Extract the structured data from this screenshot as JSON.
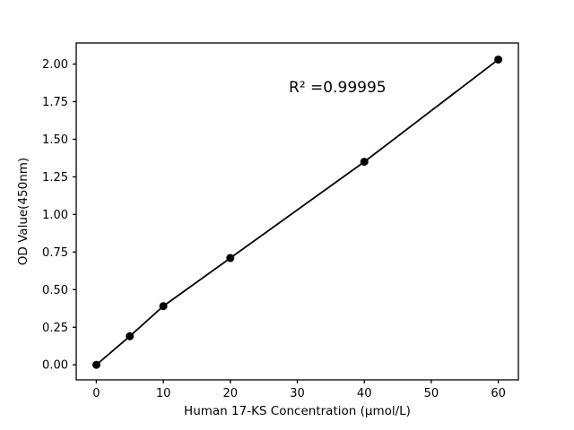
{
  "chart_data": {
    "type": "scatter",
    "connect_points": true,
    "x": [
      0,
      5,
      10,
      20,
      40,
      60
    ],
    "y": [
      0.0,
      0.19,
      0.39,
      0.71,
      1.35,
      2.03
    ],
    "title": "",
    "xlabel": "Human 17-KS Concentration (μmol/L)",
    "ylabel": "OD Value(450nm)",
    "xlim": [
      -3,
      63
    ],
    "ylim": [
      -0.1,
      2.14
    ],
    "xticks": [
      "0",
      "10",
      "20",
      "30",
      "40",
      "50",
      "60"
    ],
    "yticks": [
      "0.00",
      "0.25",
      "0.50",
      "0.75",
      "1.00",
      "1.25",
      "1.50",
      "1.75",
      "2.00"
    ],
    "annotation": {
      "text": "R² =0.99995",
      "x": 36,
      "y": 1.84
    },
    "grid": false,
    "legend": null,
    "colors": {
      "line": "#000000",
      "marker": "#000000",
      "axis": "#000000",
      "background": "#ffffff"
    }
  }
}
